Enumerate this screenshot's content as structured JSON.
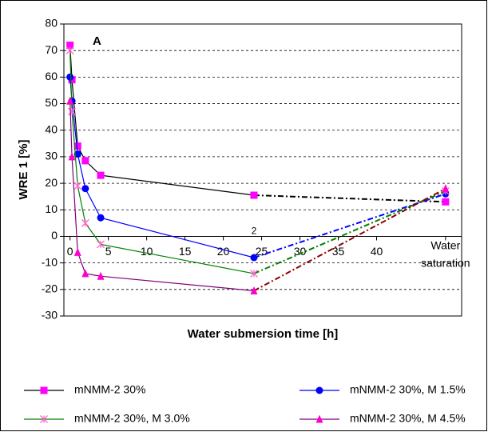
{
  "chart_data": {
    "type": "line",
    "y_label": "WRE 1 [%]",
    "x_label": "Water submersion time [h]",
    "annotations": [
      "A",
      "2"
    ],
    "x": [
      0,
      0.25,
      1,
      2,
      4,
      24,
      49
    ],
    "xlim": [
      -0.8,
      51.1
    ],
    "xticks": [
      0,
      5,
      10,
      15,
      20,
      25,
      30,
      35,
      40,
      {
        "value": 49,
        "label": "Water saturation"
      }
    ],
    "ylim": [
      -30,
      80
    ],
    "yticks": [
      -30,
      -20,
      -10,
      0,
      10,
      20,
      30,
      40,
      50,
      60,
      70,
      80
    ],
    "grid": true,
    "legend": "bottom",
    "series": [
      {
        "name": "mNMM-2 30%",
        "color": "#ff00ff",
        "dash_color": "#000000",
        "line_color": "#000000",
        "marker": "square",
        "values": [
          72,
          59,
          34,
          28.5,
          23,
          15.5,
          13
        ]
      },
      {
        "name": "mNMM-2 30%, M 1.5%",
        "color": "#0000ff",
        "dash_color": "#0000ff",
        "line_color": "#0000ff",
        "marker": "circle",
        "values": [
          60,
          51,
          31,
          18,
          7,
          -8,
          16
        ]
      },
      {
        "name": "mNMM-2 30%, M 3.0%",
        "color": "#ff66cc",
        "dash_color": "#008000",
        "line_color": "#008000",
        "marker": "star",
        "values": [
          70,
          47,
          19,
          5,
          -3,
          -14,
          17
        ]
      },
      {
        "name": "mNMM-2 30%, M 4.5%",
        "color": "#ff00cc",
        "dash_color": "#8b0000",
        "line_color": "#800080",
        "marker": "triangle",
        "values": [
          51,
          30,
          -6,
          -14,
          -15,
          -20.5,
          18
        ]
      }
    ]
  }
}
